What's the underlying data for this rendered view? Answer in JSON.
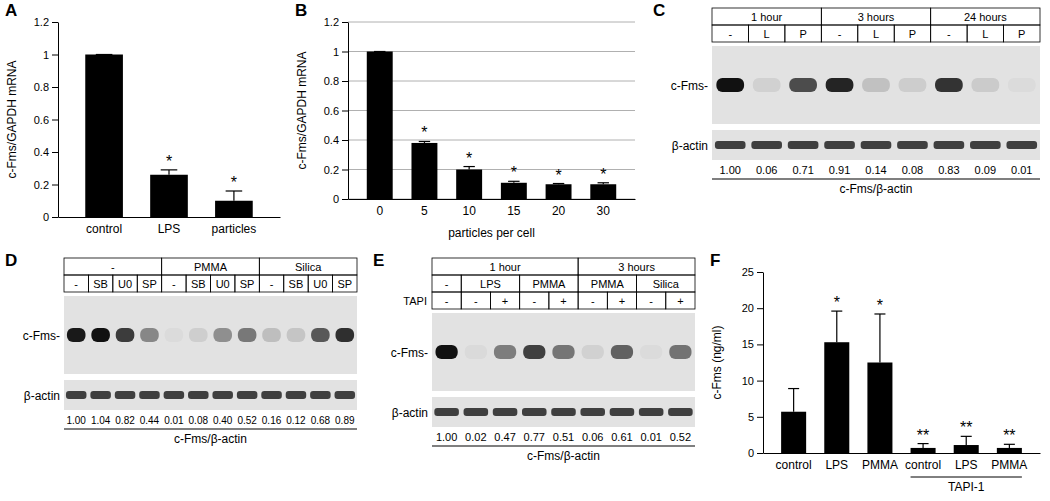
{
  "chart_data": [
    {
      "type": "bar",
      "title": "A",
      "categories": [
        "control",
        "LPS",
        "particles"
      ],
      "values": [
        1,
        0.26,
        0.1
      ],
      "errors": [
        0,
        0.03,
        0.06
      ],
      "significance": [
        null,
        "*",
        "*"
      ],
      "color": "#000000",
      "ylabel": "c-Fms/GAPDH mRNA",
      "ylim": [
        0,
        1.2
      ],
      "yticks": [
        0,
        0.2,
        0.4,
        0.6,
        0.8,
        1,
        1.2
      ],
      "grid": false
    },
    {
      "type": "bar",
      "title": "B",
      "categories": [
        "0",
        "5",
        "10",
        "15",
        "20",
        "30"
      ],
      "values": [
        1,
        0.38,
        0.2,
        0.11,
        0.1,
        0.1
      ],
      "errors": [
        0,
        0.01,
        0.02,
        0.01,
        0.005,
        0.01
      ],
      "significance": [
        null,
        "*",
        "*",
        "*",
        "*",
        "*"
      ],
      "color": "#000000",
      "ylabel": "c-Fms/GAPDH mRNA",
      "xlabel": "particles per cell",
      "ylim": [
        0,
        1.2
      ],
      "yticks": [
        0,
        0.2,
        0.4,
        0.6,
        0.8,
        1,
        1.2
      ],
      "grid": true
    },
    {
      "type": "blot",
      "title": "C",
      "header_rows": [
        {
          "cells": [
            {
              "label": "1 hour",
              "lanes": 3
            },
            {
              "label": "3 hours",
              "lanes": 3
            },
            {
              "label": "24 hours",
              "lanes": 3
            }
          ]
        },
        {
          "cells": [
            {
              "label": "-",
              "lanes": 1
            },
            {
              "label": "L",
              "lanes": 1
            },
            {
              "label": "P",
              "lanes": 1
            },
            {
              "label": "-",
              "lanes": 1
            },
            {
              "label": "L",
              "lanes": 1
            },
            {
              "label": "P",
              "lanes": 1
            },
            {
              "label": "-",
              "lanes": 1
            },
            {
              "label": "L",
              "lanes": 1
            },
            {
              "label": "P",
              "lanes": 1
            }
          ]
        }
      ],
      "rows": [
        "c-Fms-",
        "β-actin"
      ],
      "values": [
        1,
        0.06,
        0.71,
        0.91,
        0.14,
        0.08,
        0.83,
        0.09,
        0.01
      ],
      "value_labels": [
        "1.00",
        "0.06",
        "0.71",
        "0.91",
        "0.14",
        "0.08",
        "0.83",
        "0.09",
        "0.01"
      ],
      "caption": "c-Fms/β-actin"
    },
    {
      "type": "blot",
      "title": "D",
      "header_rows": [
        {
          "cells": [
            {
              "label": "-",
              "lanes": 4
            },
            {
              "label": "PMMA",
              "lanes": 4
            },
            {
              "label": "Silica",
              "lanes": 4
            }
          ]
        },
        {
          "cells": [
            {
              "label": "-",
              "lanes": 1
            },
            {
              "label": "SB",
              "lanes": 1
            },
            {
              "label": "U0",
              "lanes": 1
            },
            {
              "label": "SP",
              "lanes": 1
            },
            {
              "label": "-",
              "lanes": 1
            },
            {
              "label": "SB",
              "lanes": 1
            },
            {
              "label": "U0",
              "lanes": 1
            },
            {
              "label": "SP",
              "lanes": 1
            },
            {
              "label": "-",
              "lanes": 1
            },
            {
              "label": "SB",
              "lanes": 1
            },
            {
              "label": "U0",
              "lanes": 1
            },
            {
              "label": "SP",
              "lanes": 1
            }
          ]
        }
      ],
      "rows": [
        "c-Fms-",
        "β-actin"
      ],
      "values": [
        1,
        1.04,
        0.82,
        0.44,
        0.01,
        0.08,
        0.4,
        0.52,
        0.16,
        0.12,
        0.68,
        0.89
      ],
      "value_labels": [
        "1.00",
        "1.04",
        "0.82",
        "0.44",
        "0.01",
        "0.08",
        "0.40",
        "0.52",
        "0.16",
        "0.12",
        "0.68",
        "0.89"
      ],
      "caption": "c-Fms/β-actin"
    },
    {
      "type": "blot",
      "title": "E",
      "header_rows": [
        {
          "cells": [
            {
              "label": "1 hour",
              "lanes": 5
            },
            {
              "label": "3 hours",
              "lanes": 4
            }
          ]
        },
        {
          "cells": [
            {
              "label": "-",
              "lanes": 1
            },
            {
              "label": "LPS",
              "lanes": 2
            },
            {
              "label": "PMMA",
              "lanes": 2
            },
            {
              "label": "PMMA",
              "lanes": 2
            },
            {
              "label": "Silica",
              "lanes": 2
            }
          ]
        },
        {
          "label": "TAPI",
          "cells": [
            {
              "label": "-",
              "lanes": 1
            },
            {
              "label": "-",
              "lanes": 1
            },
            {
              "label": "+",
              "lanes": 1
            },
            {
              "label": "-",
              "lanes": 1
            },
            {
              "label": "+",
              "lanes": 1
            },
            {
              "label": "-",
              "lanes": 1
            },
            {
              "label": "+",
              "lanes": 1
            },
            {
              "label": "-",
              "lanes": 1
            },
            {
              "label": "+",
              "lanes": 1
            }
          ]
        }
      ],
      "rows": [
        "c-Fms-",
        "β-actin"
      ],
      "values": [
        1,
        0.02,
        0.47,
        0.77,
        0.51,
        0.06,
        0.61,
        0.01,
        0.52
      ],
      "value_labels": [
        "1.00",
        "0.02",
        "0.47",
        "0.77",
        "0.51",
        "0.06",
        "0.61",
        "0.01",
        "0.52"
      ],
      "caption": "c-Fms/β-actin"
    },
    {
      "type": "bar",
      "title": "F",
      "categories": [
        "control",
        "LPS",
        "PMMA",
        "control",
        "LPS",
        "PMMA"
      ],
      "values": [
        5.7,
        15.3,
        12.5,
        0.7,
        1.1,
        0.7
      ],
      "errors": [
        3.2,
        4.3,
        6.7,
        0.6,
        1.2,
        0.5
      ],
      "significance": [
        null,
        "*",
        "*",
        "**",
        "**",
        "**"
      ],
      "color": "#000000",
      "ylabel": "c-Fms (ng/ml)",
      "groups": [
        {
          "label": "TAPI-1",
          "start": 3,
          "end": 5
        }
      ],
      "ylim": [
        0,
        25
      ],
      "yticks": [
        0,
        5,
        10,
        15,
        20,
        25
      ],
      "grid": false
    }
  ]
}
